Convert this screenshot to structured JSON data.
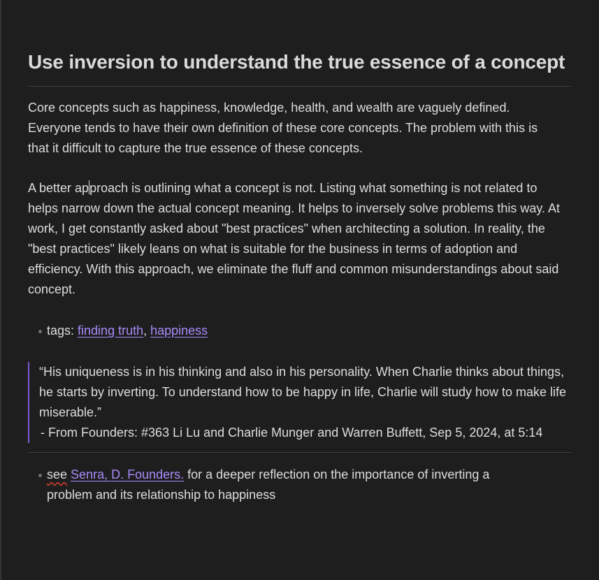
{
  "note": {
    "title": "Use inversion to understand the true essence of a concept",
    "paragraph1": "Core concepts such as happiness, knowledge, health, and wealth are vaguely defined. Everyone tends to have their own definition of these core concepts. The problem with this is that it difficult to capture the true essence of these concepts.",
    "paragraph2_before_caret": "A better ap",
    "paragraph2_after_caret": "proach is outlining what a concept is not. Listing what something is not related to helps narrow down the actual concept meaning. It helps to inversely solve problems this way. At work, I get constantly asked about \"best practices\" when architecting a solution. In reality, the \"best practices\" likely leans on what is suitable for the business in terms of adoption and efficiency. With this approach, we eliminate the fluff and common misunderstandings about said concept.",
    "tags": {
      "label": "tags: ",
      "items": [
        "finding truth",
        "happiness"
      ],
      "separator": ", "
    },
    "quote": {
      "text": "“His uniqueness is in his thinking and also in his personality. When Charlie thinks about things, he starts by inverting. To understand how to be happy in life, Charlie will study how to make life miserable.”",
      "source": "- From Founders: #363 Li Lu and Charlie Munger and Warren Buffett, Sep 5, 2024, at 5:14"
    },
    "see": {
      "prefix": "see",
      "link_text": "Senra, D. Founders.",
      "suffix": " for a deeper reflection on the importance of inverting a problem and its relationship to happiness"
    }
  },
  "colors": {
    "background": "#1e1e1e",
    "text": "#dcddde",
    "link": "#a88bfa",
    "quote_border": "#7c5cd6",
    "divider": "#3f3f3f"
  }
}
